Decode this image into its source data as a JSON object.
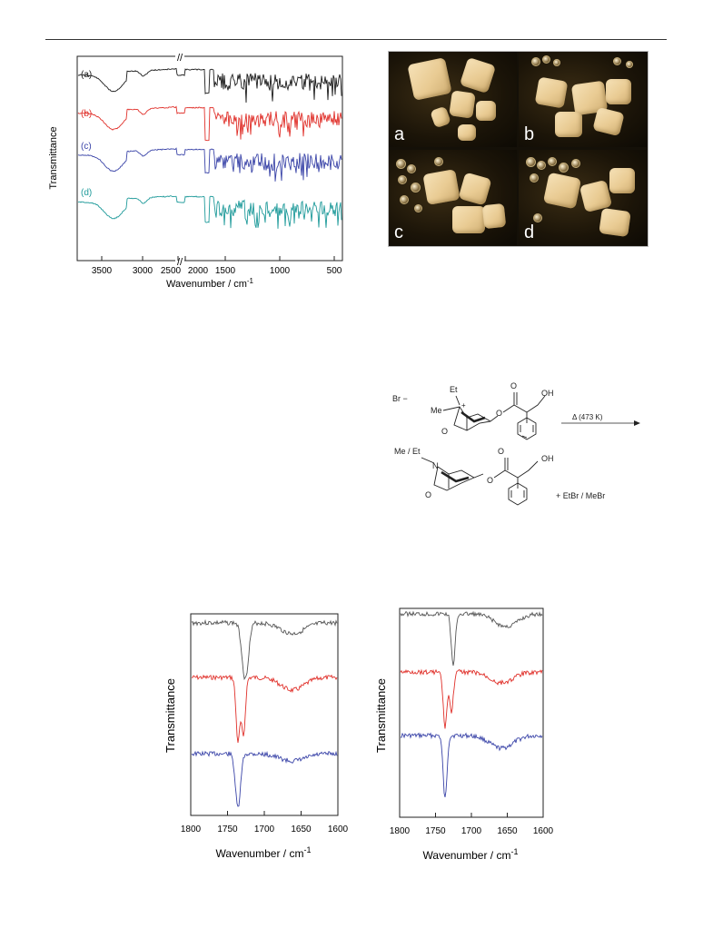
{
  "fig_top_left": {
    "ylabel": "Transmittance",
    "xlabel": "Wavenumber / cm",
    "xlabel_sup": "-1",
    "tick_labels_left": [
      "3500",
      "3000",
      "2500",
      "2000"
    ],
    "tick_labels_right": [
      "1500",
      "1000",
      "500"
    ],
    "break_marker": "//",
    "trace_labels": [
      "(a)",
      "(b)",
      "(c)",
      "(d)"
    ],
    "colors": [
      "#1a1a1a",
      "#e0302a",
      "#3a44a8",
      "#1e9a9a"
    ]
  },
  "micrographs": {
    "panel_labels": [
      "a",
      "b",
      "c",
      "d"
    ]
  },
  "scheme": {
    "counter_ion": "Br −",
    "n_substituent_top": "Et",
    "n_substituent_left": "Me",
    "charge": "+",
    "hydroxyl_top": "OH",
    "ring_oxygen_top": "O",
    "ester_oxygen_top": "O",
    "carbonyl_top": "O",
    "condition": "Δ (473 K)",
    "product_substituent": "Me / Et",
    "n_atom": "N",
    "hydroxyl_bottom": "OH",
    "ring_oxygen_bottom": "O",
    "ester_oxygen_bottom": "O",
    "carbonyl_bottom": "O",
    "byproduct": "+  EtBr / MeBr"
  },
  "fig_bottom_left": {
    "ylabel": "Transmittance",
    "xlabel": "Wavenumber / cm",
    "xlabel_sup": "-1",
    "tick_labels": [
      "1800",
      "1750",
      "1700",
      "1650",
      "1600"
    ],
    "colors": [
      "#555555",
      "#e0302a",
      "#3a44a8"
    ]
  },
  "fig_bottom_right": {
    "ylabel": "Transmittance",
    "xlabel": "Wavenumber / cm",
    "xlabel_sup": "-1",
    "tick_labels": [
      "1800",
      "1750",
      "1700",
      "1650",
      "1600"
    ],
    "colors": [
      "#555555",
      "#e0302a",
      "#3a44a8"
    ]
  }
}
